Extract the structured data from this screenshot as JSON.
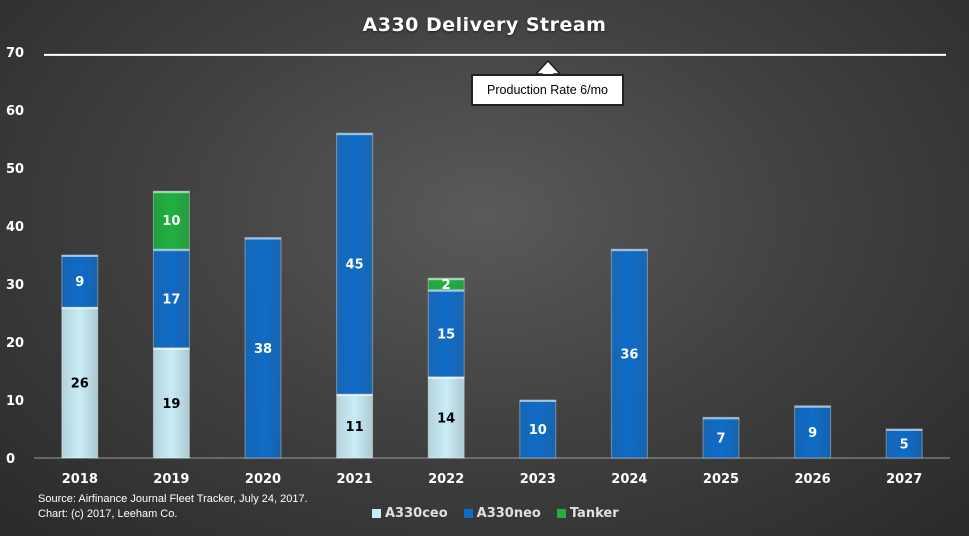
{
  "chart_data": {
    "type": "bar",
    "stacked": true,
    "title": "A330 Delivery Stream",
    "categories": [
      "2018",
      "2019",
      "2020",
      "2021",
      "2022",
      "2023",
      "2024",
      "2025",
      "2026",
      "2027"
    ],
    "series": [
      {
        "name": "A330ceo",
        "color": "#c9ecf7",
        "label_color": "#000000",
        "values": [
          26,
          19,
          0,
          11,
          14,
          0,
          0,
          0,
          0,
          0
        ]
      },
      {
        "name": "A330neo",
        "color": "#0f6cc8",
        "label_color": "#ffffff",
        "values": [
          9,
          17,
          38,
          45,
          15,
          10,
          36,
          7,
          9,
          5
        ]
      },
      {
        "name": "Tanker",
        "color": "#1fb040",
        "label_color": "#ffffff",
        "values": [
          0,
          10,
          0,
          0,
          2,
          0,
          0,
          0,
          0,
          0
        ]
      }
    ],
    "ylim": [
      0,
      70
    ],
    "yticks": [
      "0",
      "10",
      "20",
      "30",
      "40",
      "50",
      "60",
      "70"
    ],
    "xlabel": "",
    "ylabel": "",
    "grid": false,
    "legend_position": "bottom",
    "reference_line": {
      "value": 69.5,
      "label": "Production Rate 6/mo"
    }
  },
  "source_note": {
    "line1": "Source: Airfinance Journal Fleet Tracker, July 24, 2017.",
    "line2": "Chart: (c) 2017, Leeham Co."
  },
  "legend": [
    "A330ceo",
    "A330neo",
    "Tanker"
  ]
}
